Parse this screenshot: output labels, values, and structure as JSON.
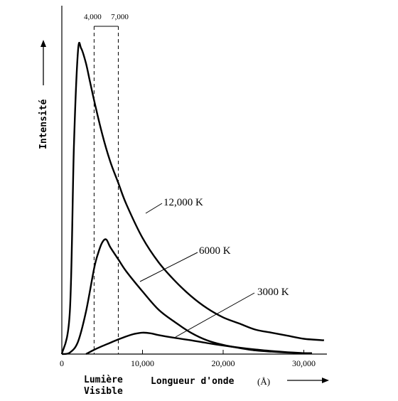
{
  "chart_data": {
    "type": "line",
    "title": "",
    "xlabel": "Longueur d'onde",
    "xlabel_unit": "(Å)",
    "ylabel": "Intensité",
    "xlim": [
      0,
      33000
    ],
    "ylim": [
      0,
      100
    ],
    "x_ticks": [
      {
        "value": 0,
        "label": "0"
      },
      {
        "value": 10000,
        "label": "10,000"
      },
      {
        "value": 20000,
        "label": "20,000"
      },
      {
        "value": 30000,
        "label": "30,000"
      }
    ],
    "visible_band": {
      "start": 4000,
      "end": 7000,
      "start_label": "4,000",
      "end_label": "7,000",
      "label_line1": "Lumière",
      "label_line2": "Visible"
    },
    "series": [
      {
        "name": "12,000 K",
        "points": [
          [
            0,
            0
          ],
          [
            1000,
            14
          ],
          [
            1500,
            68
          ],
          [
            2000,
            99
          ],
          [
            2400,
            100
          ],
          [
            3000,
            95
          ],
          [
            3500,
            89
          ],
          [
            4000,
            83
          ],
          [
            5000,
            72
          ],
          [
            6000,
            63
          ],
          [
            7000,
            56
          ],
          [
            8000,
            49
          ],
          [
            10000,
            38
          ],
          [
            12000,
            30
          ],
          [
            14000,
            24
          ],
          [
            16000,
            19
          ],
          [
            18000,
            15
          ],
          [
            20000,
            12
          ],
          [
            22000,
            10
          ],
          [
            24000,
            8
          ],
          [
            26000,
            7
          ],
          [
            28000,
            6
          ],
          [
            30000,
            5
          ],
          [
            32500,
            4.5
          ]
        ]
      },
      {
        "name": "6000 K",
        "points": [
          [
            0,
            0
          ],
          [
            1000,
            0.5
          ],
          [
            2000,
            4
          ],
          [
            3000,
            14
          ],
          [
            4000,
            28
          ],
          [
            4500,
            33
          ],
          [
            5000,
            36.5
          ],
          [
            5500,
            37.5
          ],
          [
            6000,
            35
          ],
          [
            7000,
            31
          ],
          [
            8000,
            27
          ],
          [
            10000,
            20.5
          ],
          [
            12000,
            14.5
          ],
          [
            14000,
            10.5
          ],
          [
            16000,
            7
          ],
          [
            18000,
            4.5
          ],
          [
            20000,
            3
          ],
          [
            22000,
            2
          ],
          [
            24000,
            1.2
          ],
          [
            26000,
            0.8
          ],
          [
            28000,
            0.5
          ],
          [
            30000,
            0.3
          ],
          [
            31000,
            0.3
          ]
        ]
      },
      {
        "name": "3000 K",
        "points": [
          [
            3000,
            0
          ],
          [
            4000,
            1.4
          ],
          [
            5000,
            2.6
          ],
          [
            6000,
            3.7
          ],
          [
            7000,
            4.8
          ],
          [
            8000,
            5.8
          ],
          [
            9000,
            6.6
          ],
          [
            10000,
            7
          ],
          [
            11000,
            6.8
          ],
          [
            12000,
            6.2
          ],
          [
            14000,
            5.3
          ],
          [
            16000,
            4.5
          ],
          [
            18000,
            3.6
          ],
          [
            20000,
            2.8
          ],
          [
            22000,
            2.1
          ],
          [
            24000,
            1.5
          ],
          [
            26000,
            1
          ],
          [
            28000,
            0.6
          ],
          [
            30000,
            0.3
          ],
          [
            31000,
            0.2
          ]
        ]
      }
    ]
  }
}
